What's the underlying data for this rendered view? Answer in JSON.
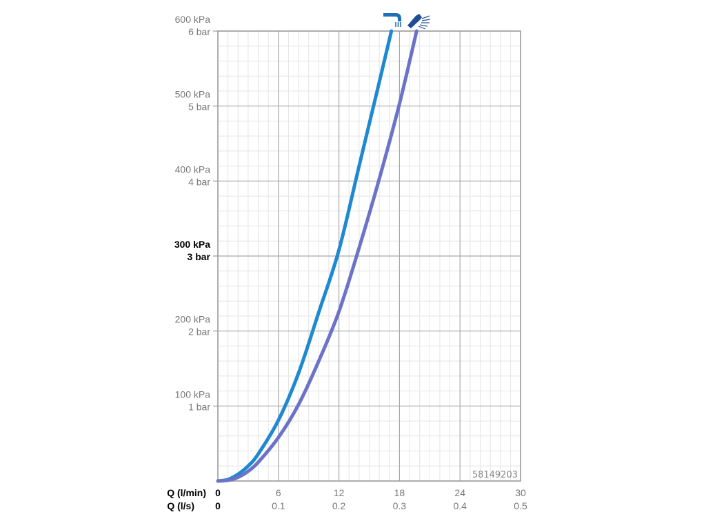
{
  "chart_data": {
    "type": "line",
    "x_primary": {
      "label": "Q (l/min)",
      "range": [
        0,
        30
      ],
      "ticks": [
        0,
        6,
        12,
        18,
        24,
        30
      ]
    },
    "x_secondary": {
      "label": "Q (l/s)",
      "tick_labels": [
        "0",
        "0.1",
        "0.2",
        "0.3",
        "0.4",
        "0.5"
      ]
    },
    "y": {
      "range": [
        0,
        600
      ],
      "ticks": [
        {
          "value": 0,
          "kpa": "",
          "bar": "",
          "bold": false
        },
        {
          "value": 100,
          "kpa": "100 kPa",
          "bar": "1 bar",
          "bold": false
        },
        {
          "value": 200,
          "kpa": "200 kPa",
          "bar": "2 bar",
          "bold": false
        },
        {
          "value": 300,
          "kpa": "300 kPa",
          "bar": "3 bar",
          "bold": true
        },
        {
          "value": 400,
          "kpa": "400 kPa",
          "bar": "4 bar",
          "bold": false
        },
        {
          "value": 500,
          "kpa": "500 kPa",
          "bar": "5 bar",
          "bold": false
        },
        {
          "value": 600,
          "kpa": "600 kPa",
          "bar": "6 bar",
          "bold": false
        }
      ]
    },
    "grid": true,
    "series": [
      {
        "icon": "tap-spout-icon",
        "color": "#1e88d0",
        "x": [
          0,
          1,
          2,
          3,
          4,
          6,
          8,
          10,
          12,
          14,
          16,
          17.2
        ],
        "y": [
          0,
          2,
          9,
          20,
          36,
          81,
          144,
          225,
          308,
          420,
          532,
          600
        ]
      },
      {
        "icon": "shower-head-icon",
        "color": "#6b72c8",
        "x": [
          0,
          1,
          2,
          3,
          4,
          6,
          8,
          10,
          12,
          14,
          16,
          18,
          19.7
        ],
        "y": [
          0,
          1,
          5,
          13,
          25,
          58,
          102,
          160,
          226,
          311,
          403,
          503,
          600
        ]
      }
    ],
    "annotation": "58149203"
  }
}
